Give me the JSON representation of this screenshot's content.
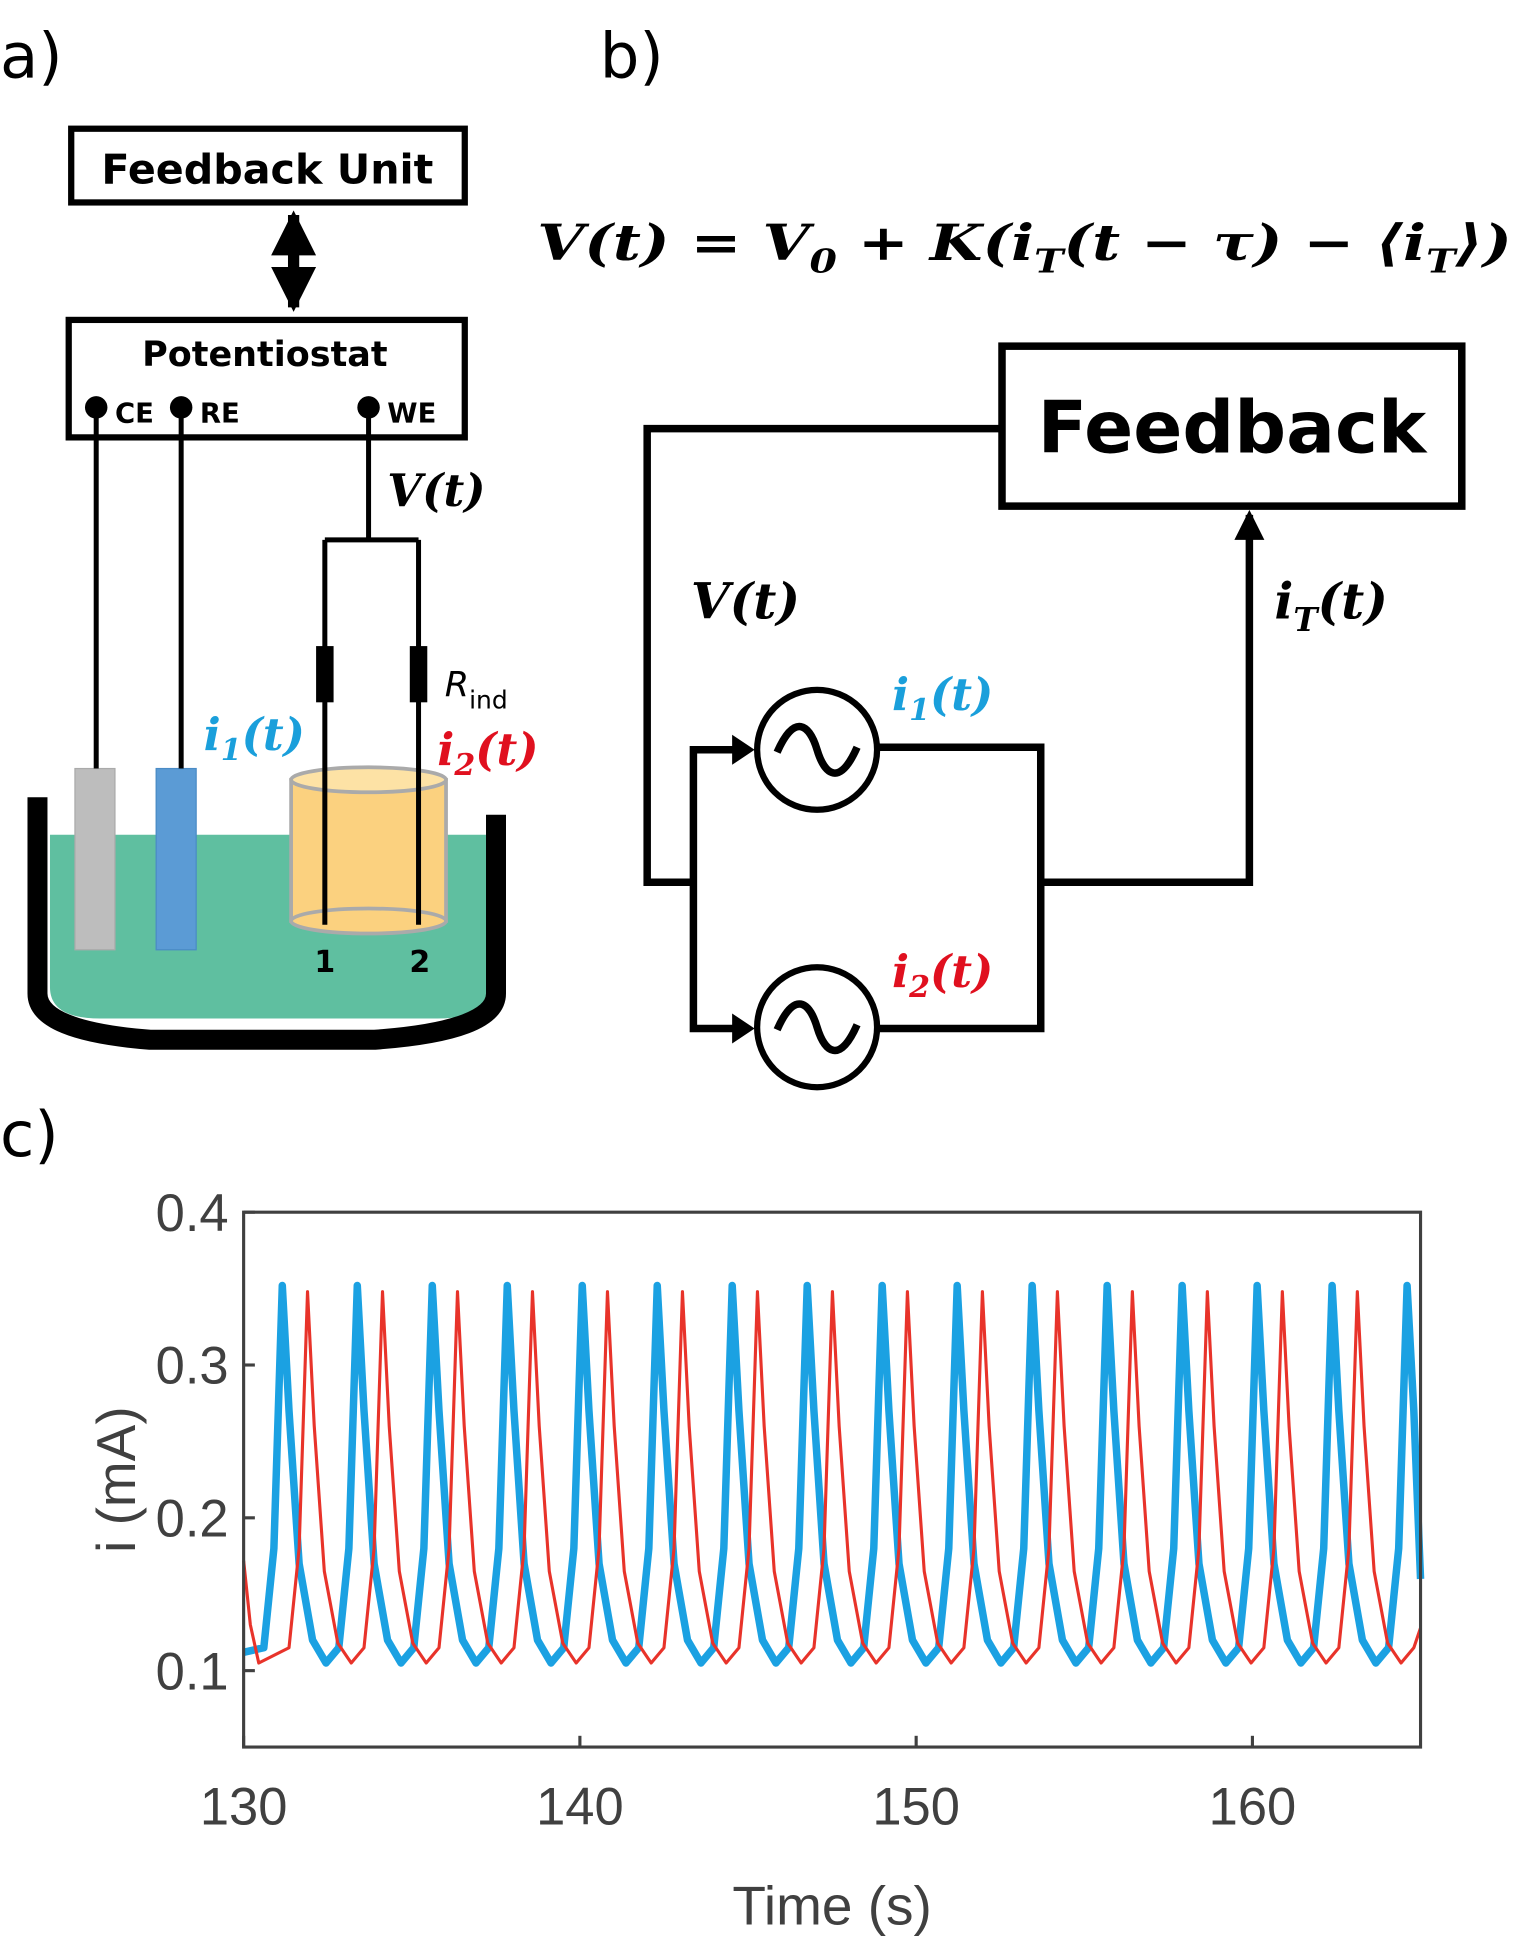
{
  "panel_a": {
    "label": "a)",
    "feedback_unit": "Feedback Unit",
    "potentiostat": "Potentiostat",
    "terminals": [
      "CE",
      "RE",
      "WE"
    ],
    "voltage": "V(t)",
    "resistor": {
      "base": "R",
      "sub": "ind"
    },
    "current_1": {
      "base": "i",
      "sub": "1",
      "arg": "(t)"
    },
    "current_2": {
      "base": "i",
      "sub": "2",
      "arg": "(t)"
    },
    "electrodes": [
      "1",
      "2"
    ]
  },
  "panel_b": {
    "label": "b)",
    "equation": [
      "V(t) = V",
      "0",
      " + K(i",
      "T",
      "(t − τ) − ⟨i",
      "T",
      "⟩)"
    ],
    "feedback": "Feedback",
    "voltage": "V(t)",
    "current_1": {
      "base": "i",
      "sub": "1",
      "arg": "(t)"
    },
    "current_2": {
      "base": "i",
      "sub": "2",
      "arg": "(t)"
    },
    "total_current": {
      "base": "i",
      "sub": "T",
      "arg": "(t)"
    }
  },
  "panel_c": {
    "label": "c)"
  },
  "chart_data": {
    "type": "line",
    "xlabel": "Time (s)",
    "ylabel": "i (mA)",
    "xlim": [
      130,
      165
    ],
    "xticks": [
      130,
      140,
      150,
      160
    ],
    "ylim": [
      0.05,
      0.4
    ],
    "yticks": [
      0.1,
      0.2,
      0.3,
      0.4
    ],
    "series": [
      {
        "color": "#1ba1e2",
        "width": 6,
        "x": [
          130.0,
          130.6,
          130.9,
          131.15,
          131.35,
          131.65,
          132.05,
          132.45,
          132.83,
          133.13,
          133.38,
          133.58,
          133.88,
          134.28,
          134.68,
          135.06,
          135.36,
          135.61,
          135.81,
          136.11,
          136.51,
          136.91,
          137.29,
          137.59,
          137.84,
          138.04,
          138.34,
          138.74,
          139.14,
          139.52,
          139.82,
          140.07,
          140.27,
          140.57,
          140.97,
          141.37,
          141.75,
          142.05,
          142.3,
          142.5,
          142.8,
          143.2,
          143.6,
          143.98,
          144.28,
          144.53,
          144.73,
          145.03,
          145.43,
          145.83,
          146.21,
          146.51,
          146.76,
          146.96,
          147.26,
          147.66,
          148.06,
          148.44,
          148.74,
          148.99,
          149.19,
          149.49,
          149.89,
          150.29,
          150.67,
          150.97,
          151.22,
          151.42,
          151.72,
          152.12,
          152.52,
          152.9,
          153.2,
          153.45,
          153.65,
          153.95,
          154.35,
          154.75,
          155.13,
          155.43,
          155.68,
          155.88,
          156.18,
          156.58,
          156.98,
          157.36,
          157.66,
          157.91,
          158.11,
          158.41,
          158.81,
          159.21,
          159.59,
          159.89,
          160.14,
          160.34,
          160.64,
          161.04,
          161.44,
          161.82,
          162.12,
          162.37,
          162.57,
          162.87,
          163.27,
          163.67,
          164.05,
          164.35,
          164.6,
          164.8,
          165.0
        ],
        "values": [
          0.112,
          0.115,
          0.18,
          0.352,
          0.27,
          0.17,
          0.12,
          0.105,
          0.115,
          0.18,
          0.352,
          0.27,
          0.17,
          0.12,
          0.105,
          0.115,
          0.18,
          0.352,
          0.27,
          0.17,
          0.12,
          0.105,
          0.115,
          0.18,
          0.352,
          0.27,
          0.17,
          0.12,
          0.105,
          0.115,
          0.18,
          0.352,
          0.27,
          0.17,
          0.12,
          0.105,
          0.115,
          0.18,
          0.352,
          0.27,
          0.17,
          0.12,
          0.105,
          0.115,
          0.18,
          0.352,
          0.27,
          0.17,
          0.12,
          0.105,
          0.115,
          0.18,
          0.352,
          0.27,
          0.17,
          0.12,
          0.105,
          0.115,
          0.18,
          0.352,
          0.27,
          0.17,
          0.12,
          0.105,
          0.115,
          0.18,
          0.352,
          0.27,
          0.17,
          0.12,
          0.105,
          0.115,
          0.18,
          0.352,
          0.27,
          0.17,
          0.12,
          0.105,
          0.115,
          0.18,
          0.352,
          0.27,
          0.17,
          0.12,
          0.105,
          0.115,
          0.18,
          0.352,
          0.27,
          0.17,
          0.12,
          0.105,
          0.115,
          0.18,
          0.352,
          0.27,
          0.17,
          0.12,
          0.105,
          0.115,
          0.18,
          0.352,
          0.27,
          0.17,
          0.12,
          0.105,
          0.115,
          0.18,
          0.352,
          0.27,
          0.16
        ]
      },
      {
        "color": "#e8332a",
        "width": 2.5,
        "x": [
          130.0,
          130.2,
          130.45,
          131.35,
          131.65,
          131.9,
          132.1,
          132.4,
          132.8,
          133.2,
          133.58,
          133.88,
          134.13,
          134.33,
          134.63,
          135.03,
          135.43,
          135.81,
          136.11,
          136.36,
          136.56,
          136.86,
          137.26,
          137.66,
          138.04,
          138.34,
          138.59,
          138.79,
          139.09,
          139.49,
          139.89,
          140.27,
          140.57,
          140.82,
          141.02,
          141.32,
          141.72,
          142.12,
          142.5,
          142.8,
          143.05,
          143.25,
          143.55,
          143.95,
          144.35,
          144.73,
          145.03,
          145.28,
          145.48,
          145.78,
          146.18,
          146.58,
          146.96,
          147.26,
          147.51,
          147.71,
          148.01,
          148.41,
          148.81,
          149.19,
          149.49,
          149.74,
          149.94,
          150.24,
          150.64,
          151.04,
          151.42,
          151.72,
          151.97,
          152.17,
          152.47,
          152.87,
          153.27,
          153.65,
          153.95,
          154.2,
          154.4,
          154.7,
          155.1,
          155.5,
          155.88,
          156.18,
          156.43,
          156.63,
          156.93,
          157.33,
          157.73,
          158.11,
          158.41,
          158.66,
          158.86,
          159.16,
          159.56,
          159.96,
          160.34,
          160.64,
          160.89,
          161.09,
          161.39,
          161.79,
          162.19,
          162.57,
          162.87,
          163.12,
          163.32,
          163.62,
          164.02,
          164.42,
          164.8,
          165.0
        ],
        "values": [
          0.172,
          0.13,
          0.105,
          0.115,
          0.18,
          0.348,
          0.26,
          0.165,
          0.118,
          0.105,
          0.115,
          0.18,
          0.348,
          0.26,
          0.165,
          0.118,
          0.105,
          0.115,
          0.18,
          0.348,
          0.26,
          0.165,
          0.118,
          0.105,
          0.115,
          0.18,
          0.348,
          0.26,
          0.165,
          0.118,
          0.105,
          0.115,
          0.18,
          0.348,
          0.26,
          0.165,
          0.118,
          0.105,
          0.115,
          0.18,
          0.348,
          0.26,
          0.165,
          0.118,
          0.105,
          0.115,
          0.18,
          0.348,
          0.26,
          0.165,
          0.118,
          0.105,
          0.115,
          0.18,
          0.348,
          0.26,
          0.165,
          0.118,
          0.105,
          0.115,
          0.18,
          0.348,
          0.26,
          0.165,
          0.118,
          0.105,
          0.115,
          0.18,
          0.348,
          0.26,
          0.165,
          0.118,
          0.105,
          0.115,
          0.18,
          0.348,
          0.26,
          0.165,
          0.118,
          0.105,
          0.115,
          0.18,
          0.348,
          0.26,
          0.165,
          0.118,
          0.105,
          0.115,
          0.18,
          0.348,
          0.26,
          0.165,
          0.118,
          0.105,
          0.115,
          0.18,
          0.348,
          0.26,
          0.165,
          0.118,
          0.105,
          0.115,
          0.18,
          0.348,
          0.26,
          0.165,
          0.118,
          0.105,
          0.115,
          0.128
        ]
      }
    ]
  }
}
